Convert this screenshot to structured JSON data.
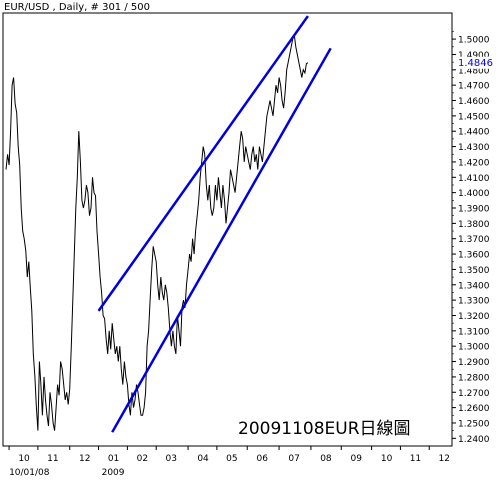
{
  "chart_data": {
    "type": "line",
    "title": "EUR/USD , Daily, # 301 / 500",
    "watermark": "20091108EUR日線圖",
    "current_value_label": "1.4846",
    "current_value": 1.4846,
    "ylim": [
      1.235,
      1.517
    ],
    "y_ticks": [
      1.24,
      1.25,
      1.26,
      1.27,
      1.28,
      1.29,
      1.3,
      1.31,
      1.32,
      1.33,
      1.34,
      1.35,
      1.36,
      1.37,
      1.38,
      1.39,
      1.4,
      1.41,
      1.42,
      1.43,
      1.44,
      1.45,
      1.46,
      1.47,
      1.48,
      1.49,
      1.5
    ],
    "y_tick_labels": [
      "1.2400",
      "1.2500",
      "1.2600",
      "1.2700",
      "1.2800",
      "1.2900",
      "1.3000",
      "1.3100",
      "1.3200",
      "1.3300",
      "1.3400",
      "1.3500",
      "1.3600",
      "1.3700",
      "1.3800",
      "1.3900",
      "1.4000",
      "1.4100",
      "1.4200",
      "1.4300",
      "1.4400",
      "1.4500",
      "1.4600",
      "1.4700",
      "1.4800",
      "1.4900",
      "1.5000"
    ],
    "x_months": [
      {
        "label": "10",
        "x": 0
      },
      {
        "label": "11",
        "x": 19
      },
      {
        "label": "12",
        "x": 40
      },
      {
        "label": "01",
        "x": 59
      },
      {
        "label": "02",
        "x": 78
      },
      {
        "label": "03",
        "x": 97
      },
      {
        "label": "04",
        "x": 118
      },
      {
        "label": "05",
        "x": 137
      },
      {
        "label": "06",
        "x": 157
      },
      {
        "label": "07",
        "x": 178
      },
      {
        "label": "08",
        "x": 199
      },
      {
        "label": "09",
        "x": 219
      },
      {
        "label": "10",
        "x": 239
      },
      {
        "label": "11",
        "x": 258
      },
      {
        "label": "12",
        "x": 277
      }
    ],
    "x_sublabels": [
      {
        "label": "10/01/08",
        "x": 0
      },
      {
        "label": "2009",
        "x": 61
      }
    ],
    "xlim": [
      -4,
      292
    ],
    "grid": false,
    "series": [
      {
        "values": [
          [
            -2,
            1.415
          ],
          [
            -1,
            1.425
          ],
          [
            0,
            1.418
          ],
          [
            1,
            1.44
          ],
          [
            2,
            1.47
          ],
          [
            3,
            1.475
          ],
          [
            4,
            1.458
          ],
          [
            5,
            1.452
          ],
          [
            6,
            1.43
          ],
          [
            7,
            1.418
          ],
          [
            8,
            1.39
          ],
          [
            9,
            1.375
          ],
          [
            10,
            1.37
          ],
          [
            11,
            1.362
          ],
          [
            12,
            1.345
          ],
          [
            13,
            1.355
          ],
          [
            14,
            1.338
          ],
          [
            15,
            1.323
          ],
          [
            16,
            1.295
          ],
          [
            17,
            1.28
          ],
          [
            18,
            1.26
          ],
          [
            19,
            1.245
          ],
          [
            20,
            1.29
          ],
          [
            21,
            1.275
          ],
          [
            22,
            1.255
          ],
          [
            23,
            1.28
          ],
          [
            24,
            1.265
          ],
          [
            25,
            1.255
          ],
          [
            26,
            1.248
          ],
          [
            27,
            1.27
          ],
          [
            28,
            1.262
          ],
          [
            29,
            1.25
          ],
          [
            30,
            1.245
          ],
          [
            31,
            1.26
          ],
          [
            32,
            1.275
          ],
          [
            33,
            1.268
          ],
          [
            34,
            1.29
          ],
          [
            35,
            1.285
          ],
          [
            36,
            1.275
          ],
          [
            37,
            1.265
          ],
          [
            38,
            1.27
          ],
          [
            39,
            1.262
          ],
          [
            40,
            1.272
          ],
          [
            41,
            1.3
          ],
          [
            42,
            1.33
          ],
          [
            43,
            1.36
          ],
          [
            44,
            1.39
          ],
          [
            45,
            1.41
          ],
          [
            46,
            1.44
          ],
          [
            47,
            1.42
          ],
          [
            48,
            1.395
          ],
          [
            49,
            1.39
          ],
          [
            50,
            1.395
          ],
          [
            51,
            1.405
          ],
          [
            52,
            1.4
          ],
          [
            53,
            1.385
          ],
          [
            54,
            1.39
          ],
          [
            55,
            1.41
          ],
          [
            56,
            1.4
          ],
          [
            57,
            1.398
          ],
          [
            58,
            1.375
          ],
          [
            59,
            1.36
          ],
          [
            60,
            1.345
          ],
          [
            61,
            1.335
          ],
          [
            62,
            1.32
          ],
          [
            63,
            1.318
          ],
          [
            64,
            1.305
          ],
          [
            65,
            1.295
          ],
          [
            66,
            1.31
          ],
          [
            67,
            1.298
          ],
          [
            68,
            1.315
          ],
          [
            69,
            1.305
          ],
          [
            70,
            1.295
          ],
          [
            71,
            1.3
          ],
          [
            72,
            1.29
          ],
          [
            73,
            1.3
          ],
          [
            74,
            1.285
          ],
          [
            75,
            1.275
          ],
          [
            76,
            1.29
          ],
          [
            77,
            1.28
          ],
          [
            78,
            1.275
          ],
          [
            79,
            1.262
          ],
          [
            80,
            1.255
          ],
          [
            81,
            1.27
          ],
          [
            82,
            1.26
          ],
          [
            83,
            1.265
          ],
          [
            84,
            1.275
          ],
          [
            85,
            1.27
          ],
          [
            86,
            1.262
          ],
          [
            87,
            1.255
          ],
          [
            88,
            1.255
          ],
          [
            89,
            1.26
          ],
          [
            90,
            1.27
          ],
          [
            91,
            1.3
          ],
          [
            92,
            1.31
          ],
          [
            93,
            1.33
          ],
          [
            94,
            1.35
          ],
          [
            95,
            1.365
          ],
          [
            96,
            1.36
          ],
          [
            97,
            1.355
          ],
          [
            98,
            1.34
          ],
          [
            99,
            1.33
          ],
          [
            100,
            1.345
          ],
          [
            101,
            1.335
          ],
          [
            102,
            1.33
          ],
          [
            103,
            1.34
          ],
          [
            104,
            1.335
          ],
          [
            105,
            1.325
          ],
          [
            106,
            1.31
          ],
          [
            107,
            1.3
          ],
          [
            108,
            1.31
          ],
          [
            109,
            1.3
          ],
          [
            110,
            1.295
          ],
          [
            111,
            1.32
          ],
          [
            112,
            1.31
          ],
          [
            113,
            1.3
          ],
          [
            114,
            1.325
          ],
          [
            115,
            1.33
          ],
          [
            116,
            1.325
          ],
          [
            117,
            1.34
          ],
          [
            118,
            1.35
          ],
          [
            119,
            1.36
          ],
          [
            120,
            1.355
          ],
          [
            121,
            1.37
          ],
          [
            122,
            1.36
          ],
          [
            123,
            1.375
          ],
          [
            124,
            1.385
          ],
          [
            125,
            1.395
          ],
          [
            126,
            1.41
          ],
          [
            127,
            1.42
          ],
          [
            128,
            1.43
          ],
          [
            129,
            1.425
          ],
          [
            130,
            1.405
          ],
          [
            131,
            1.395
          ],
          [
            132,
            1.405
          ],
          [
            133,
            1.39
          ],
          [
            134,
            1.385
          ],
          [
            135,
            1.39
          ],
          [
            136,
            1.405
          ],
          [
            137,
            1.395
          ],
          [
            138,
            1.41
          ],
          [
            139,
            1.4
          ],
          [
            140,
            1.39
          ],
          [
            141,
            1.405
          ],
          [
            142,
            1.395
          ],
          [
            143,
            1.38
          ],
          [
            144,
            1.39
          ],
          [
            145,
            1.4
          ],
          [
            146,
            1.415
          ],
          [
            147,
            1.41
          ],
          [
            148,
            1.405
          ],
          [
            149,
            1.4
          ],
          [
            150,
            1.41
          ],
          [
            151,
            1.42
          ],
          [
            152,
            1.43
          ],
          [
            153,
            1.44
          ],
          [
            154,
            1.435
          ],
          [
            155,
            1.42
          ],
          [
            156,
            1.43
          ],
          [
            157,
            1.425
          ],
          [
            158,
            1.42
          ],
          [
            159,
            1.415
          ],
          [
            160,
            1.425
          ],
          [
            161,
            1.43
          ],
          [
            162,
            1.42
          ],
          [
            163,
            1.425
          ],
          [
            164,
            1.415
          ],
          [
            165,
            1.43
          ],
          [
            166,
            1.425
          ],
          [
            167,
            1.42
          ],
          [
            168,
            1.43
          ],
          [
            169,
            1.44
          ],
          [
            170,
            1.45
          ],
          [
            171,
            1.455
          ],
          [
            172,
            1.46
          ],
          [
            173,
            1.455
          ],
          [
            174,
            1.45
          ],
          [
            175,
            1.46
          ],
          [
            176,
            1.47
          ],
          [
            177,
            1.465
          ],
          [
            178,
            1.475
          ],
          [
            179,
            1.47
          ],
          [
            180,
            1.46
          ],
          [
            181,
            1.455
          ],
          [
            182,
            1.465
          ],
          [
            183,
            1.48
          ],
          [
            184,
            1.485
          ],
          [
            185,
            1.49
          ],
          [
            186,
            1.495
          ],
          [
            187,
            1.5
          ],
          [
            188,
            1.503
          ],
          [
            189,
            1.495
          ],
          [
            190,
            1.49
          ],
          [
            191,
            1.485
          ],
          [
            192,
            1.48
          ],
          [
            193,
            1.475
          ],
          [
            194,
            1.48
          ],
          [
            195,
            1.478
          ],
          [
            196,
            1.484
          ],
          [
            197,
            1.4846
          ]
        ]
      }
    ],
    "trendlines": [
      {
        "from": [
          59,
          1.323
        ],
        "to": [
          197,
          1.515
        ]
      },
      {
        "from": [
          68,
          1.244
        ],
        "to": [
          212,
          1.494
        ]
      }
    ]
  }
}
